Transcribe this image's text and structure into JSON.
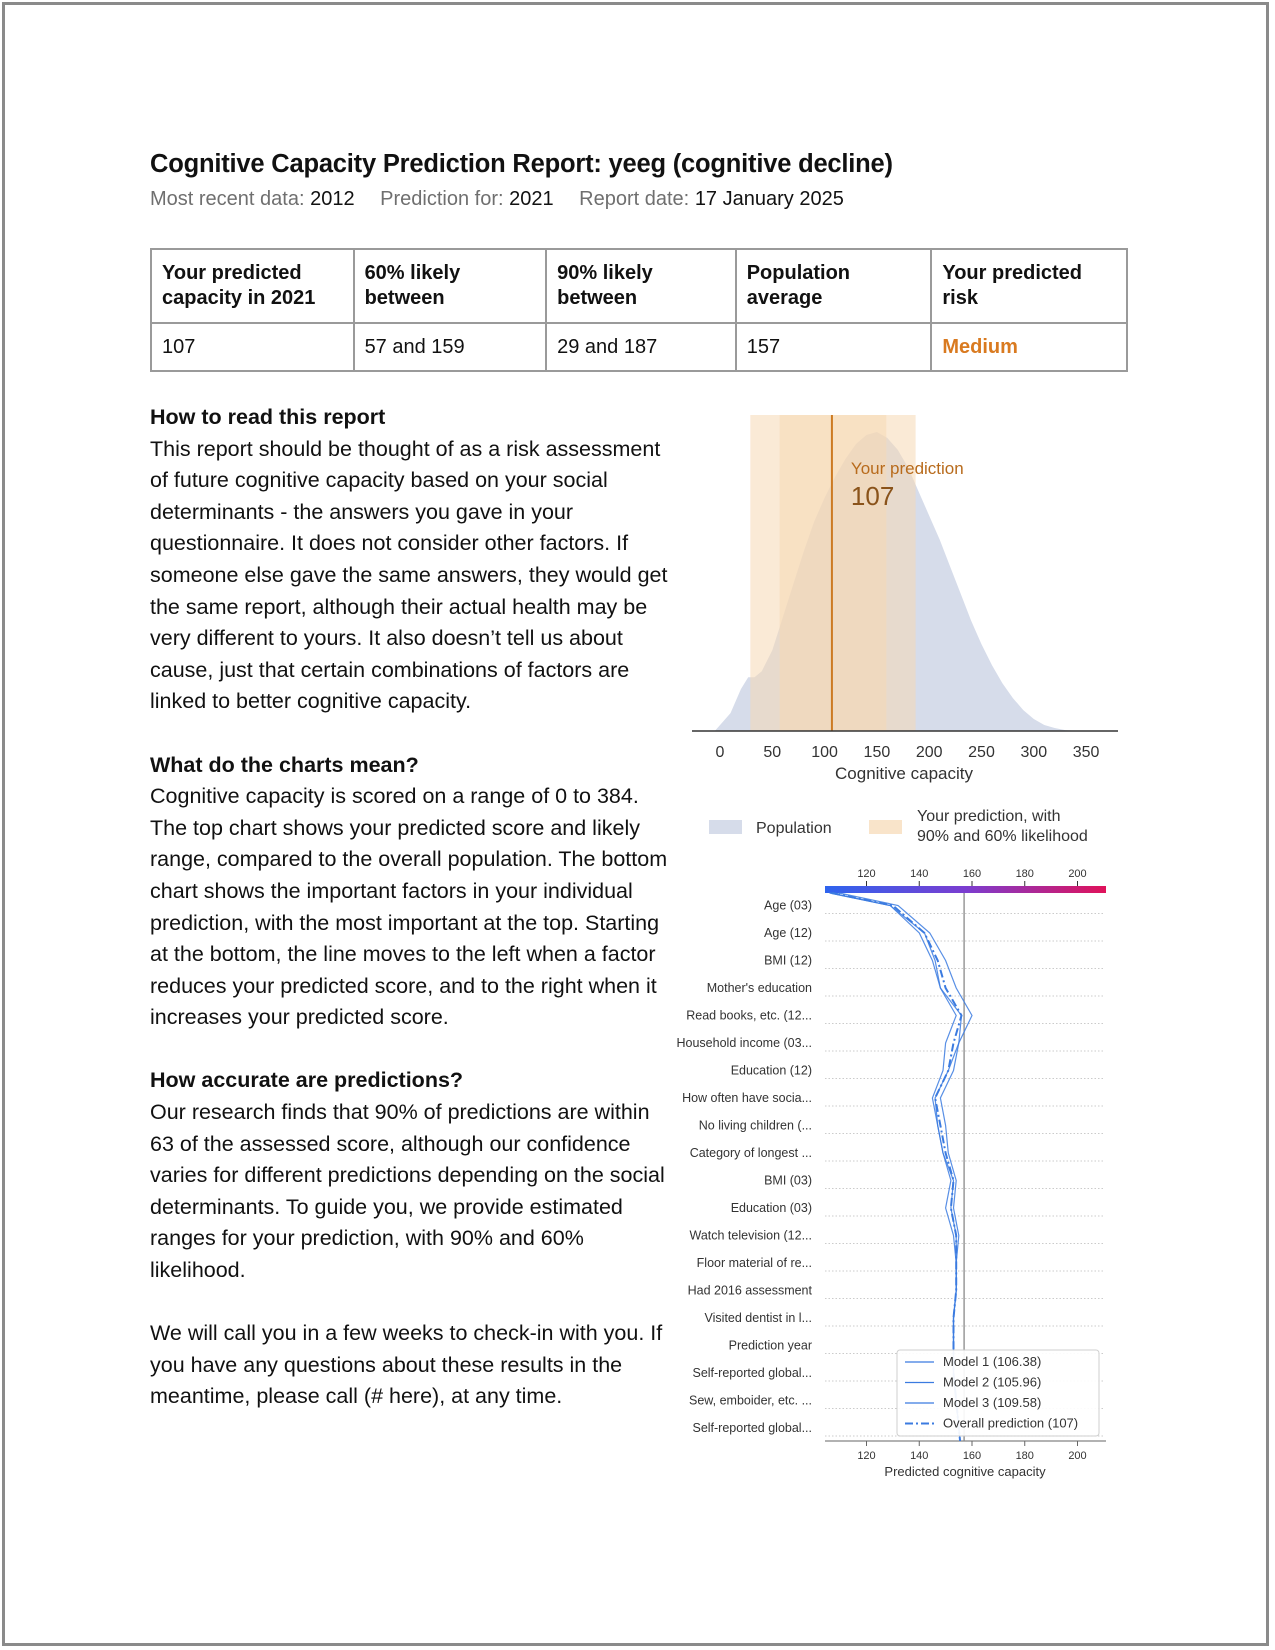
{
  "report": {
    "title": "Cognitive Capacity Prediction Report: yeeg (cognitive decline)",
    "meta": [
      {
        "label": "Most recent data:",
        "value": "2012"
      },
      {
        "label": "Prediction for:",
        "value": "2021"
      },
      {
        "label": "Report date:",
        "value": "17 January 2025"
      }
    ]
  },
  "summary_table": {
    "headers": [
      "Your predicted capacity in 2021",
      "60% likely between",
      "90% likely between",
      "Population average",
      "Your predicted risk"
    ],
    "values": [
      "107",
      "57 and 159",
      "29 and 187",
      "157",
      "Medium"
    ],
    "risk_color": "#d97a20"
  },
  "sections": [
    {
      "heading": "How to read this report",
      "text": "This report should be thought of as a risk assessment of future cognitive capacity based on your social determinants - the answers you gave in your questionnaire. It does not consider other factors. If someone else gave the same answers, they would get the same report, although their actual health may be very different to yours. It also doesn’t tell us about cause, just that certain combinations of factors are linked to better cognitive capacity."
    },
    {
      "heading": "What do the charts mean?",
      "text": "Cognitive capacity is scored on a range of 0 to 384. The top chart shows your predicted score and likely range, compared to the overall population. The bottom chart shows the important factors in your individual prediction, with the most important at the top. Starting at the bottom, the line moves to the left when a factor reduces your predicted score, and to the right when it increases your predicted score."
    },
    {
      "heading": "How accurate are predictions?",
      "text": "Our research finds that 90% of predictions are within 63 of the assessed score, although our confidence varies for different predictions depending on the social determinants. To guide you, we provide estimated ranges for your prediction, with 90% and 60% likelihood."
    },
    {
      "heading": "",
      "text": "We will call you in a few weeks to check-in with you. If you have any questions about these results in the meantime, please call (# here), at any time."
    }
  ],
  "chart_data": [
    {
      "type": "area",
      "xlabel": "Cognitive capacity",
      "ylabel": "",
      "xlim": [
        -25,
        360
      ],
      "xticks": [
        0,
        50,
        100,
        150,
        200,
        250,
        300,
        350
      ],
      "grid": false,
      "legend_position": "bottom",
      "legend": [
        "Population",
        "Your prediction, with 90% and 60% likelihood"
      ],
      "population_density": {
        "x": [
          -5,
          10,
          20,
          27,
          33,
          40,
          50,
          60,
          70,
          80,
          90,
          100,
          110,
          120,
          130,
          140,
          150,
          160,
          170,
          180,
          190,
          200,
          210,
          220,
          230,
          240,
          250,
          260,
          270,
          280,
          290,
          300,
          310,
          320,
          330,
          345
        ],
        "y": [
          0,
          0.06,
          0.14,
          0.18,
          0.18,
          0.2,
          0.27,
          0.38,
          0.49,
          0.6,
          0.7,
          0.78,
          0.85,
          0.91,
          0.96,
          0.99,
          1.0,
          0.98,
          0.94,
          0.88,
          0.8,
          0.72,
          0.64,
          0.55,
          0.46,
          0.37,
          0.29,
          0.22,
          0.16,
          0.11,
          0.07,
          0.04,
          0.02,
          0.01,
          0.003,
          0
        ]
      },
      "interval_90": [
        29,
        187
      ],
      "interval_60": [
        57,
        159
      ],
      "prediction": 107,
      "prediction_label": "Your prediction",
      "prediction_value_label": "107",
      "colors": {
        "population": "#d6dcea",
        "interval": "#f6d8b4",
        "prediction_line": "#cc7a22",
        "prediction_text": "#b86b1c"
      }
    },
    {
      "type": "line",
      "xlabel": "Predicted cognitive capacity",
      "ylabel": "",
      "xlim": [
        105,
        210
      ],
      "xticks": [
        120,
        140,
        160,
        180,
        200
      ],
      "base_value": 157,
      "grid": true,
      "legend_position": "bottom-right",
      "categories": [
        "Age (03)",
        "Age (12)",
        "BMI (12)",
        "Mother's education",
        "Read books, etc. (12...",
        "Household income (03...",
        "Education (12)",
        "How often have socia...",
        "No living children (...",
        "Category of longest ...",
        "BMI (03)",
        "Education (03)",
        "Watch television (12...",
        "Floor material of re...",
        "Had 2016 assessment",
        "Visited dentist in l...",
        "Prediction year",
        "Self-reported global...",
        "Sew, emboider, etc. ...",
        "Self-reported global..."
      ],
      "series": [
        {
          "name": "Model 1 (106.38)",
          "style": "solid",
          "top": 106.38,
          "values": [
            129,
            142,
            146,
            148,
            156,
            155,
            151,
            146,
            147,
            149,
            153,
            152,
            154,
            154,
            154,
            153,
            153,
            153,
            154,
            155
          ]
        },
        {
          "name": "Model 2 (105.96)",
          "style": "solid",
          "top": 105.96,
          "values": [
            129,
            140,
            145,
            148,
            154,
            150,
            149,
            145,
            147,
            149,
            152,
            150,
            153,
            154,
            154,
            153,
            153,
            153,
            154,
            155
          ]
        },
        {
          "name": "Model 3 (109.58)",
          "style": "solid",
          "top": 109.58,
          "values": [
            132,
            144,
            150,
            154,
            160,
            155,
            153,
            148,
            150,
            151,
            154,
            153,
            155,
            154,
            154,
            153,
            153,
            153,
            154,
            155
          ]
        },
        {
          "name": "Overall prediction (107)",
          "style": "dashdot",
          "top": 107,
          "values": [
            130,
            142,
            147,
            150,
            156,
            153,
            151,
            146,
            148,
            150,
            153,
            152,
            154,
            154,
            154,
            153,
            153,
            153,
            154,
            155
          ]
        }
      ],
      "colors": {
        "line": "#3b7be0",
        "base_line": "#8a8a8a",
        "colorbar": [
          "#2e64ee",
          "#7b3dd0",
          "#e0125a"
        ]
      }
    }
  ]
}
